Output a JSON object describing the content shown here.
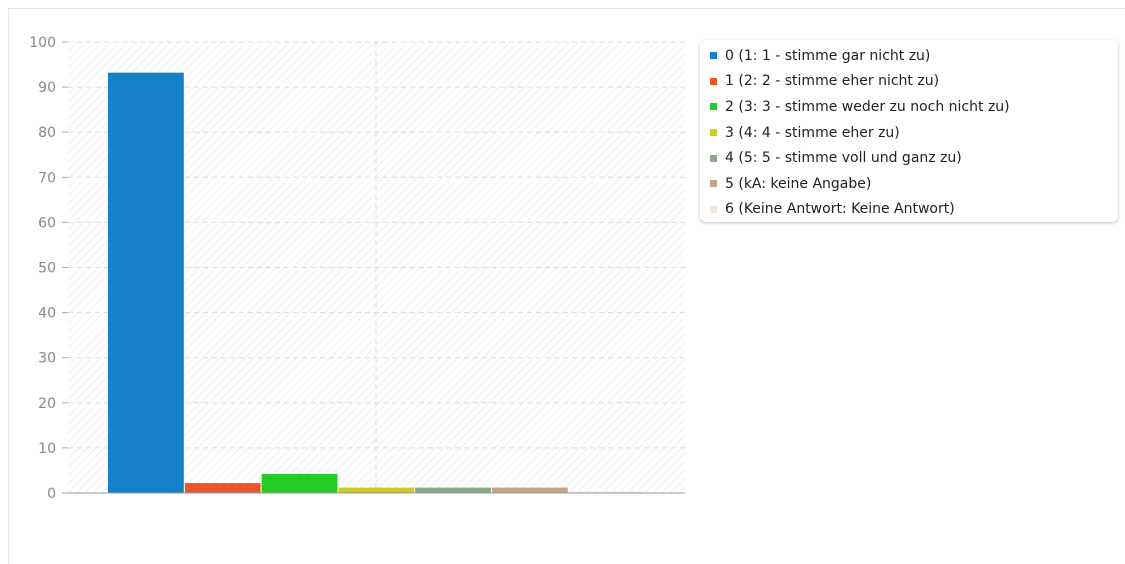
{
  "chart_data": {
    "type": "bar",
    "title": "",
    "xlabel": "",
    "ylabel": "",
    "ylim": [
      0,
      100
    ],
    "yticks": [
      0,
      10,
      20,
      30,
      40,
      50,
      60,
      70,
      80,
      90,
      100
    ],
    "grid": true,
    "legend_position": "right",
    "series": [
      {
        "name": "0 (1: 1 - stimme gar nicht zu)",
        "value": 93.2,
        "color": "#1581c8"
      },
      {
        "name": "1 (2: 2 - stimme eher nicht zu)",
        "value": 2.2,
        "color": "#e8572a"
      },
      {
        "name": "2 (3: 3 - stimme weder zu noch nicht zu)",
        "value": 4.2,
        "color": "#22cc22"
      },
      {
        "name": "3 (4: 4 - stimme eher zu)",
        "value": 1.2,
        "color": "#cccc22"
      },
      {
        "name": "4 (5: 5 - stimme voll und ganz zu)",
        "value": 1.2,
        "color": "#88aa88"
      },
      {
        "name": "5 (kA: keine Angabe)",
        "value": 1.2,
        "color": "#c4a484"
      },
      {
        "name": "6 (Keine Antwort: Keine Antwort)",
        "value": 0.3,
        "color": "#f7e3dc"
      }
    ]
  }
}
